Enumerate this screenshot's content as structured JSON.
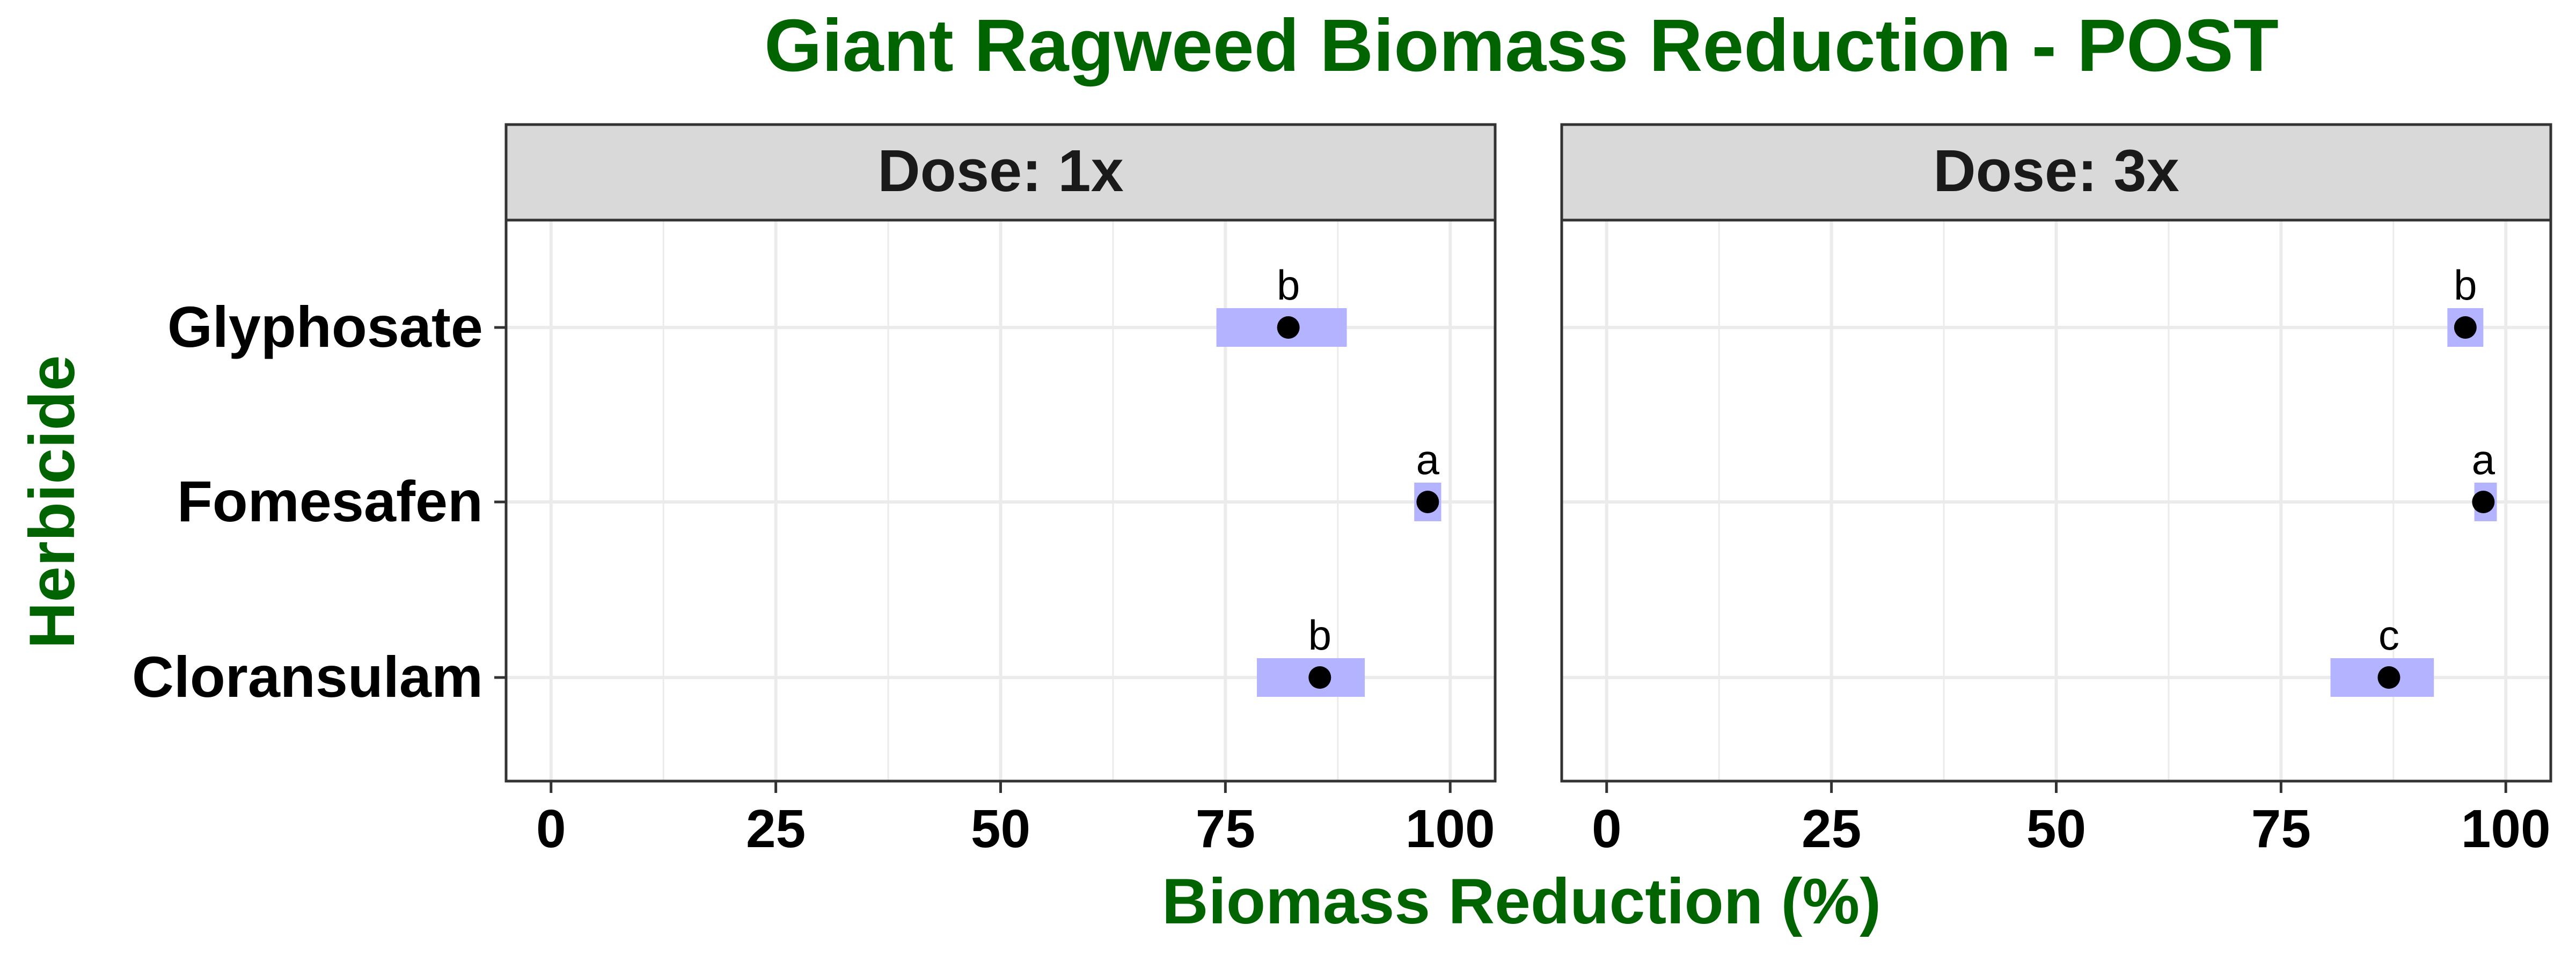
{
  "chart_data": {
    "type": "scatter",
    "title": "Giant Ragweed Biomass Reduction - POST",
    "xlabel": "Biomass Reduction (%)",
    "ylabel": "Herbicide",
    "xlim": [
      -5,
      105
    ],
    "xticks": [
      0,
      25,
      50,
      75,
      100
    ],
    "xtick_labels": [
      "0",
      "25",
      "50",
      "75",
      "100"
    ],
    "categories": [
      "Glyphosate",
      "Fomesafen",
      "Cloransulam"
    ],
    "grid": true,
    "colors": {
      "title": "#006400",
      "point": "#000000",
      "interval": "#b3b3ff",
      "strip_fill": "#d9d9d9",
      "grid": "#ebebeb"
    },
    "facets": [
      {
        "label": "Dose: 1x",
        "points": [
          {
            "herbicide": "Glyphosate",
            "estimate": 82,
            "lower": 74,
            "upper": 88.5,
            "group": "b"
          },
          {
            "herbicide": "Fomesafen",
            "estimate": 97.5,
            "lower": 96,
            "upper": 99,
            "group": "a"
          },
          {
            "herbicide": "Cloransulam",
            "estimate": 85.5,
            "lower": 78.5,
            "upper": 90.5,
            "group": "b"
          }
        ]
      },
      {
        "label": "Dose: 3x",
        "points": [
          {
            "herbicide": "Glyphosate",
            "estimate": 95.5,
            "lower": 93.5,
            "upper": 97.5,
            "group": "b"
          },
          {
            "herbicide": "Fomesafen",
            "estimate": 97.5,
            "lower": 96.5,
            "upper": 99,
            "group": "a"
          },
          {
            "herbicide": "Cloransulam",
            "estimate": 87,
            "lower": 80.5,
            "upper": 92,
            "group": "c"
          }
        ]
      }
    ]
  }
}
